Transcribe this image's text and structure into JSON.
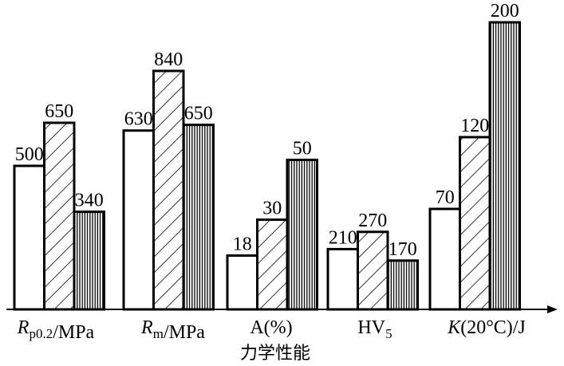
{
  "chart_data": {
    "type": "bar",
    "xlabel": "力学性能",
    "ylabel": "",
    "grid": false,
    "legend": "none",
    "categories": [
      {
        "segments": [
          {
            "text": "R",
            "style": "italic"
          },
          {
            "text": "p0.2",
            "style": "sub"
          },
          {
            "text": "/MPa",
            "style": "normal"
          }
        ]
      },
      {
        "segments": [
          {
            "text": "R",
            "style": "italic"
          },
          {
            "text": "m",
            "style": "sub"
          },
          {
            "text": "/MPa",
            "style": "normal"
          }
        ]
      },
      {
        "segments": [
          {
            "text": "A(%)",
            "style": "normal"
          }
        ]
      },
      {
        "segments": [
          {
            "text": "HV",
            "style": "normal"
          },
          {
            "text": "5",
            "style": "sub"
          }
        ]
      },
      {
        "segments": [
          {
            "text": "K",
            "style": "italic"
          },
          {
            "text": "(20°C)/J",
            "style": "normal"
          }
        ]
      }
    ],
    "series": [
      {
        "fill": "blank",
        "values": [
          500,
          630,
          18,
          210,
          70
        ]
      },
      {
        "fill": "diagonal-hatch",
        "values": [
          650,
          840,
          30,
          270,
          120
        ]
      },
      {
        "fill": "vertical-hatch",
        "values": [
          340,
          650,
          50,
          170,
          200
        ]
      }
    ],
    "colors": {
      "stroke": "#000000",
      "background": "#ffffff"
    }
  }
}
